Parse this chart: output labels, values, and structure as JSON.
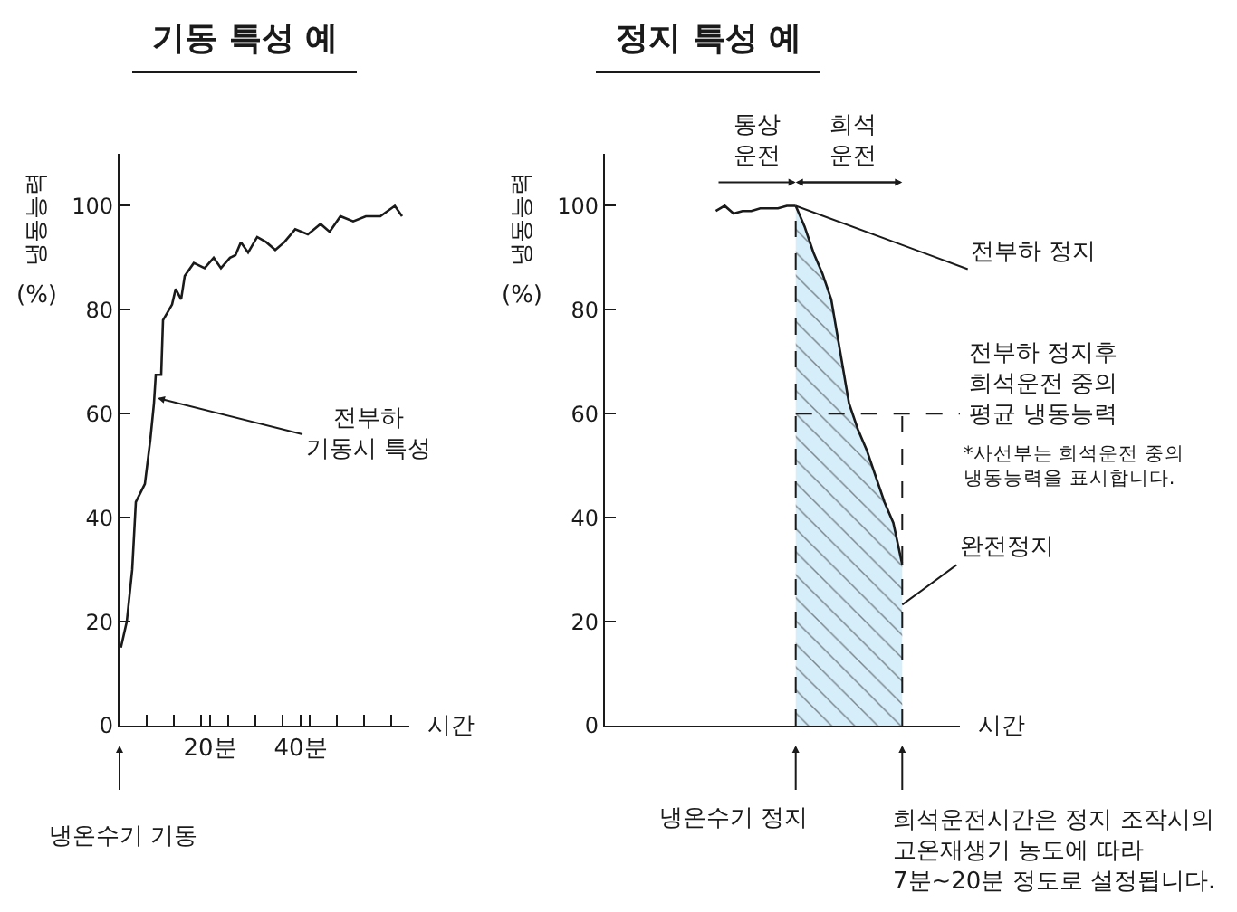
{
  "chart_data": [
    {
      "type": "line",
      "title": "기동 특성 예",
      "ylabel": "냉동능력\n(%)",
      "xlabel": "시간",
      "x": [
        0.3,
        1.6,
        2.8,
        3.6,
        5.6,
        6.8,
        7.6,
        8,
        9.2,
        9.6,
        11.6,
        12.4,
        13.6,
        14.4,
        16.4,
        18.8,
        20.8,
        22.4,
        24.4,
        25.6,
        26.8,
        28.4,
        30.4,
        32.4,
        34.4,
        36.4,
        38.8,
        41.6,
        44.4,
        46.4,
        48.8,
        51.6,
        54.4,
        57.6,
        60.8,
        62.4
      ],
      "series": [
        {
          "color": "#1a1a1a",
          "values": [
            15,
            20,
            30,
            43,
            46.5,
            55,
            62,
            67.5,
            67.5,
            78,
            81,
            84,
            82,
            86.5,
            89,
            88,
            90,
            88,
            90,
            90.5,
            93,
            91,
            94,
            93,
            91.5,
            93,
            95.5,
            94.5,
            96.5,
            95,
            98,
            97,
            98,
            98,
            100,
            98
          ]
        }
      ],
      "xlim": [
        0,
        64
      ],
      "xticks": [
        {
          "value": 6,
          "label": null
        },
        {
          "value": 12,
          "label": null
        },
        {
          "value": 18,
          "label": null
        },
        {
          "value": 20,
          "label": "20분"
        },
        {
          "value": 24,
          "label": null
        },
        {
          "value": 30,
          "label": null
        },
        {
          "value": 36,
          "label": null
        },
        {
          "value": 40,
          "label": "40분"
        },
        {
          "value": 42,
          "label": null
        },
        {
          "value": 48,
          "label": null
        },
        {
          "value": 54,
          "label": null
        },
        {
          "value": 60,
          "label": null
        }
      ],
      "ylim": [
        0,
        110
      ],
      "yticks": [
        0,
        20,
        40,
        60,
        80,
        100
      ],
      "annotations": [
        {
          "text": "전부하\n기동시 특성",
          "x": 8.4,
          "y": 63
        },
        "냉온수기 기동"
      ]
    },
    {
      "type": "line",
      "title": "정지 특성 예",
      "ylabel": "냉동능력\n(%)",
      "xlabel": "시간",
      "categories": [
        null,
        null,
        null,
        null,
        null,
        null,
        null,
        null,
        null,
        null,
        null,
        null,
        null,
        null,
        null,
        null,
        null,
        null,
        null,
        null,
        null,
        null,
        null,
        null,
        null,
        null,
        null,
        null,
        null,
        null,
        null,
        null,
        null,
        null,
        null,
        null,
        null,
        null,
        null,
        null
      ],
      "series": [
        {
          "color": "#1a1a1a",
          "values": [
            null,
            null,
            null,
            null,
            null,
            null,
            null,
            null,
            null,
            null,
            null,
            null,
            99,
            100,
            98.5,
            99,
            99,
            99.5,
            99.5,
            99.5,
            100,
            100,
            null,
            null,
            null,
            null,
            null,
            null,
            null,
            null,
            null,
            null,
            null,
            null,
            null,
            null,
            null,
            null,
            null,
            null
          ]
        },
        {
          "type": "area",
          "color": "#d6eefa",
          "values": [
            null,
            null,
            null,
            null,
            null,
            null,
            null,
            null,
            null,
            null,
            null,
            null,
            null,
            null,
            null,
            null,
            null,
            null,
            null,
            null,
            null,
            100,
            96,
            91,
            87,
            82,
            72,
            62,
            57,
            53,
            48,
            43,
            39,
            31,
            null,
            null,
            null,
            null,
            null,
            null
          ]
        }
      ],
      "ylim": [
        0,
        110
      ],
      "yticks": [
        0,
        20,
        40,
        60,
        80,
        100
      ],
      "tick_labels": "y",
      "ref_lines": [
        {
          "axis": "y",
          "value": 60,
          "label": "전부하 정지후\n희석운전 중의\n평균 냉동능력",
          "line_style": "dashed"
        }
      ],
      "annotations": [
        "통상\n운전",
        "희석\n운전",
        "전부하 정지",
        "*사선부는 희석운전 중의\n냉동능력을 표시합니다.",
        "완전정지",
        "냉온수기 정지",
        "희석운전시간은 정지 조작시의\n고온재생기 농도에 따라\n7분~20분 정도로 설정됩니다."
      ]
    }
  ]
}
